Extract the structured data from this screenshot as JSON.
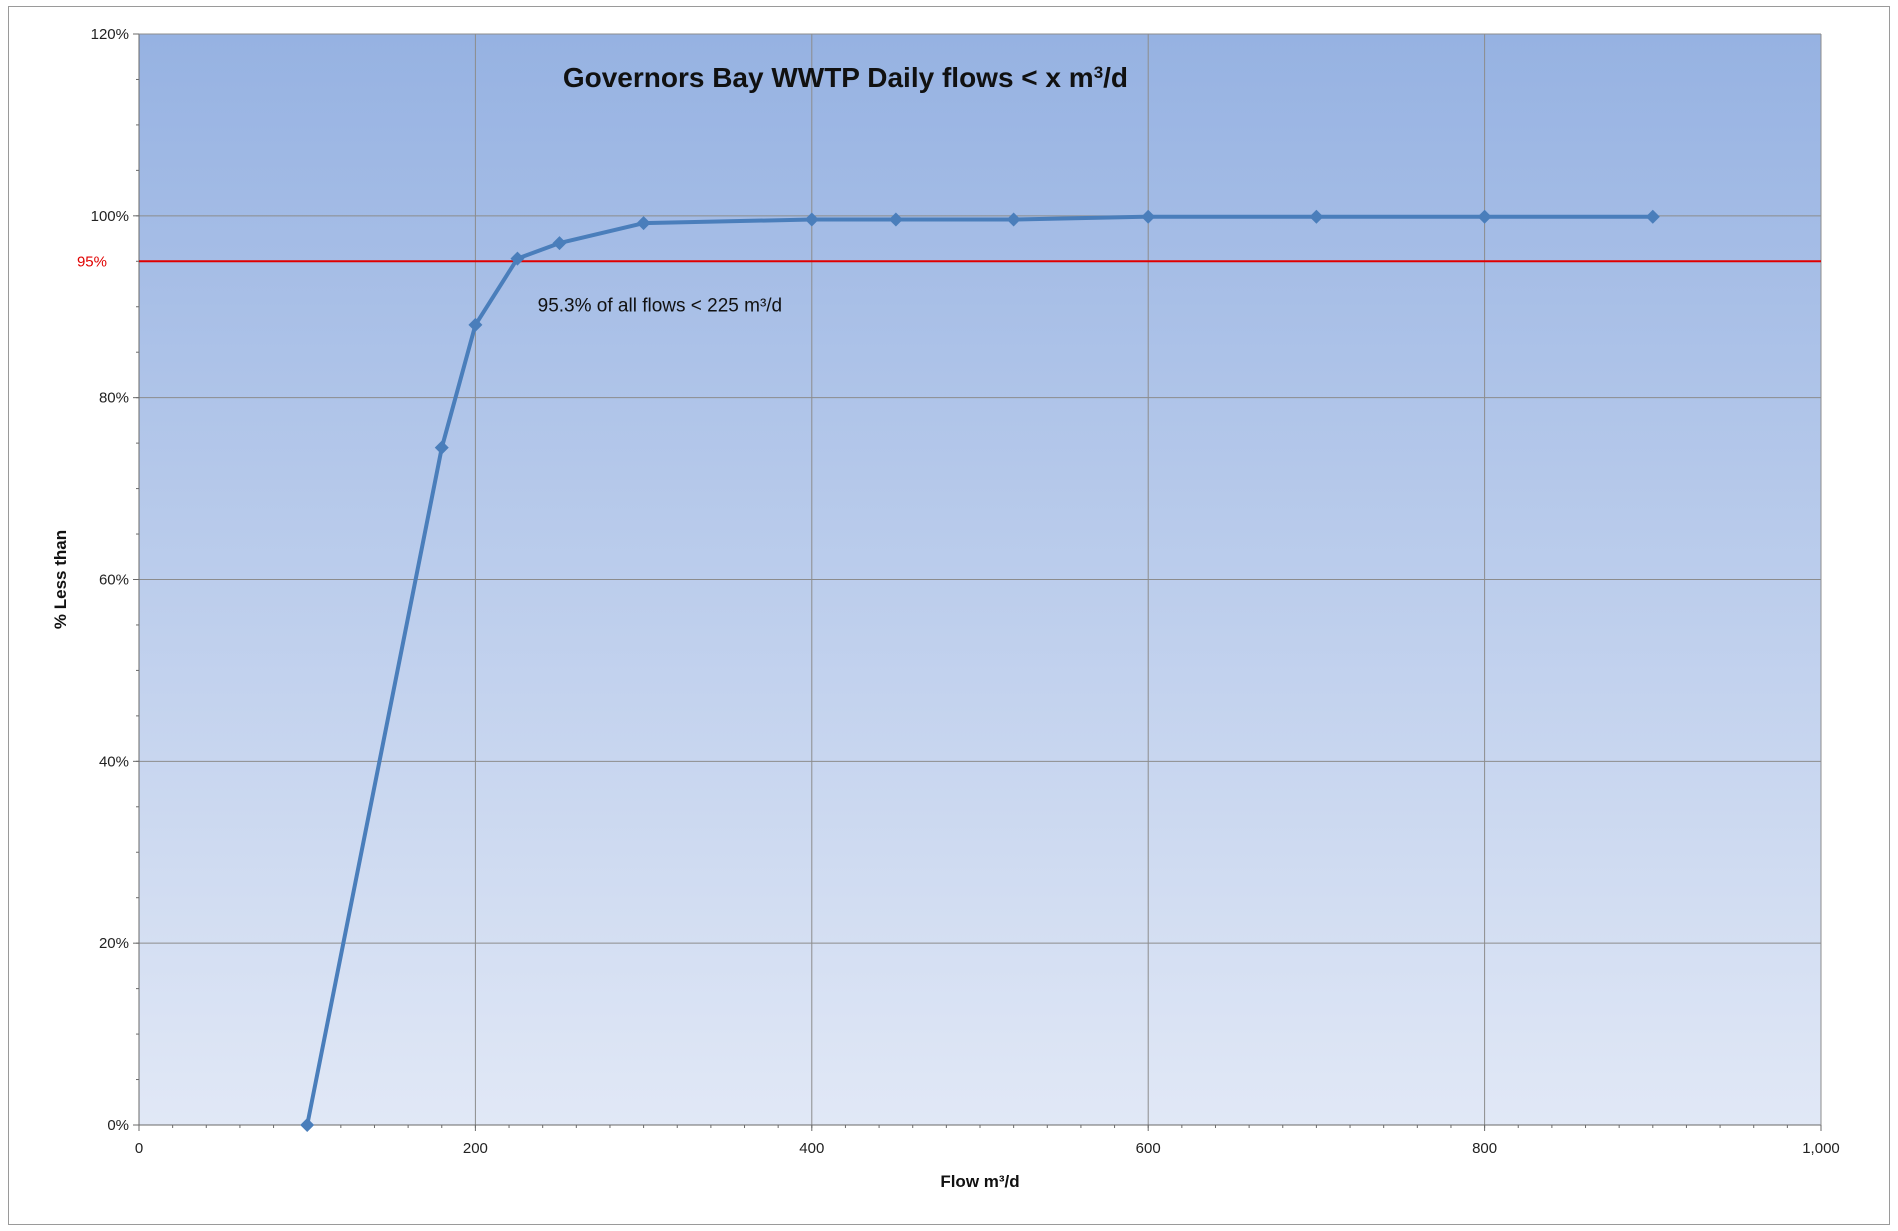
{
  "chart_data": {
    "type": "line",
    "title": "Governors Bay WWTP Daily flows < x m",
    "title_sup": "3",
    "title_suffix": "/d",
    "xlabel": "Flow m³/d",
    "ylabel": "% Less than",
    "xlim": [
      0,
      1000
    ],
    "ylim": [
      0,
      120
    ],
    "x_ticks": [
      0,
      200,
      400,
      600,
      800,
      1000
    ],
    "x_tick_labels": [
      "0",
      "200",
      "400",
      "600",
      "800",
      "1,000"
    ],
    "y_ticks": [
      0,
      20,
      40,
      60,
      80,
      100,
      120
    ],
    "y_tick_labels": [
      "0%",
      "20%",
      "40%",
      "60%",
      "80%",
      "100%",
      "120%"
    ],
    "grid": true,
    "series": [
      {
        "x": [
          100,
          180,
          200,
          225,
          250,
          300,
          400,
          450,
          520,
          600,
          700,
          800,
          900
        ],
        "y": [
          0,
          74.5,
          88,
          95.3,
          97,
          99.2,
          99.6,
          99.6,
          99.6,
          99.9,
          99.9,
          99.9,
          99.9
        ],
        "color": "#4a7ebb",
        "marker": "diamond"
      }
    ],
    "reference_line": {
      "y": 95,
      "label": "95%",
      "color": "#e00000"
    },
    "annotation": {
      "text": "95.3% of all flows < 225 m³/d",
      "x": 237,
      "y": 89.5
    },
    "background_gradient": [
      "#96b2e2",
      "#e1e8f6"
    ]
  }
}
